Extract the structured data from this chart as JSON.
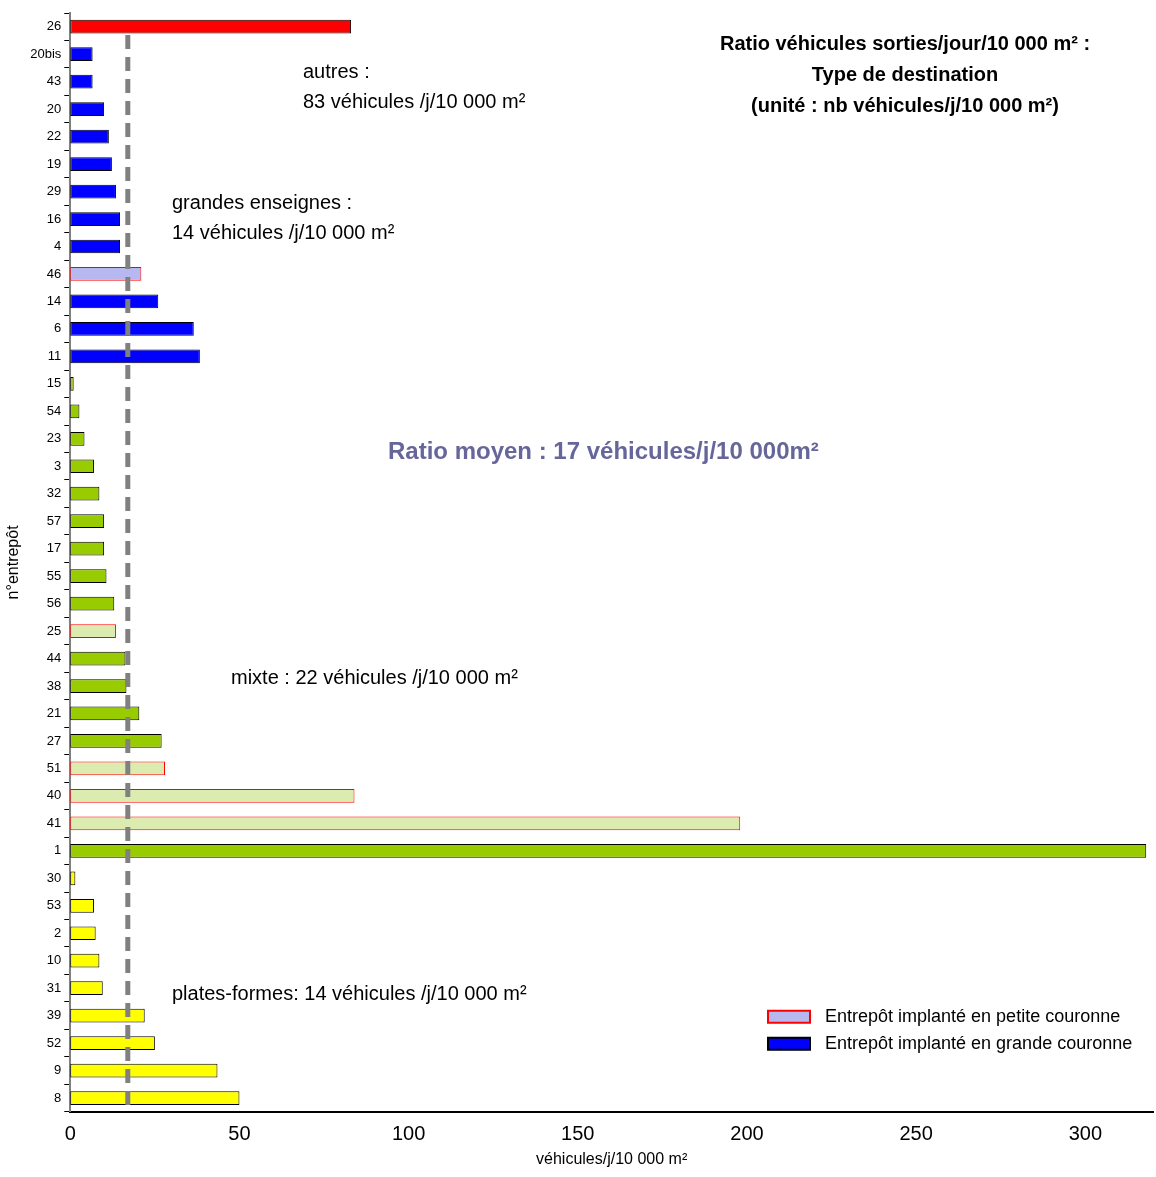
{
  "chart_data": {
    "type": "bar",
    "orientation": "horizontal",
    "title": "Ratio véhicules sorties/jour/10 000 m² :\nType de destination\n(unité : nb véhicules/j/10 000 m²)",
    "xlabel": "véhicules/j/10 000 m²",
    "ylabel": "n°entrepôt",
    "categories": [
      "26",
      "20bis",
      "43",
      "20",
      "22",
      "19",
      "29",
      "16",
      "4",
      "46",
      "14",
      "6",
      "11",
      "15",
      "54",
      "23",
      "3",
      "32",
      "57",
      "17",
      "55",
      "56",
      "25",
      "44",
      "38",
      "21",
      "27",
      "51",
      "40",
      "41",
      "1",
      "30",
      "53",
      "2",
      "10",
      "31",
      "39",
      "52",
      "9",
      "8"
    ],
    "series": [
      {
        "name": "Entrepôt implanté en petite couronne",
        "color": "#ff0000",
        "colors": [
          null,
          null,
          null,
          null,
          null,
          null,
          null,
          null,
          null,
          "#b8b8f0",
          null,
          null,
          null,
          null,
          null,
          null,
          null,
          null,
          null,
          null,
          null,
          null,
          "#dcecb0",
          null,
          null,
          null,
          null,
          "#dcecb0",
          "#dcecb0",
          "#dcecb0",
          null,
          null,
          null,
          null,
          null,
          null,
          null,
          null,
          null,
          null
        ],
        "values": [
          null,
          null,
          null,
          null,
          null,
          null,
          null,
          null,
          null,
          21,
          null,
          null,
          null,
          null,
          null,
          null,
          null,
          null,
          null,
          null,
          null,
          null,
          13.5,
          null,
          null,
          null,
          null,
          28,
          84,
          198,
          null,
          null,
          null,
          null,
          null,
          null,
          null,
          null,
          null,
          null
        ]
      },
      {
        "name": "Entrepôt implanté en grande couronne",
        "color": "#0000ff",
        "colors": [
          "#ff0000",
          "#0000ff",
          "#0000ff",
          "#0000ff",
          "#0000ff",
          "#0000ff",
          "#0000ff",
          "#0000ff",
          "#0000ff",
          null,
          "#0000ff",
          "#0000ff",
          "#0000ff",
          "#99cc00",
          "#99cc00",
          "#99cc00",
          "#99cc00",
          "#99cc00",
          "#99cc00",
          "#99cc00",
          "#99cc00",
          "#99cc00",
          null,
          "#99cc00",
          "#99cc00",
          "#99cc00",
          "#99cc00",
          null,
          null,
          null,
          "#99cc00",
          "#ffff00",
          "#ffff00",
          "#ffff00",
          "#ffff00",
          "#ffff00",
          "#ffff00",
          "#ffff00",
          "#ffff00",
          "#ffff00"
        ],
        "values": [
          83,
          6.6,
          6.6,
          10,
          11.4,
          12.3,
          13.5,
          14.7,
          14.7,
          null,
          26,
          36.5,
          38.3,
          1,
          2.7,
          4.2,
          7,
          8.6,
          10,
          10,
          10.7,
          13,
          null,
          16.3,
          16.6,
          20.4,
          27,
          null,
          null,
          null,
          318,
          1.5,
          7,
          7.5,
          8.6,
          9.6,
          22,
          25,
          43.5,
          50
        ]
      }
    ],
    "xlim": [
      0,
      320
    ],
    "xticks": [
      0,
      50,
      100,
      150,
      200,
      250,
      300
    ],
    "ref_lines": [
      {
        "axis": "x",
        "value": 17,
        "color": "#808080",
        "line_style": "dashed"
      }
    ],
    "annotations": [
      "autres :\n83 véhicules /j/10 000 m²",
      "grandes enseignes :\n14 véhicules /j/10 000 m²",
      "Ratio moyen : 17 véhicules/j/10 000m²",
      "mixte : 22 véhicules /j/10 000 m²",
      "plates-formes: 14 véhicules /j/10 000 m²"
    ],
    "legend": "bottom right",
    "grid": false
  }
}
